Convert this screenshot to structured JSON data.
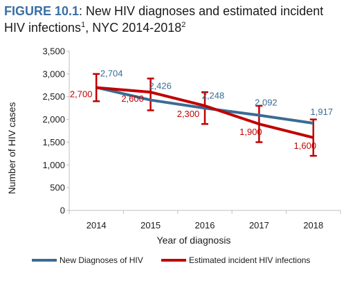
{
  "title": {
    "label": "FIGURE 10.1",
    "text": ": New HIV diagnoses and estimated incident HIV infections",
    "sup1": "1",
    "text2": ", NYC 2014-2018",
    "sup2": "2"
  },
  "colors": {
    "series_diagnoses": "#3a6b94",
    "series_incident": "#c00000",
    "label_diagnoses": "#3a6b94",
    "label_incident": "#c00000",
    "title_label": "#3a6ea5"
  },
  "chart_data": {
    "type": "line",
    "xlabel": "Year of diagnosis",
    "ylabel": "Number of HIV cases",
    "categories": [
      "2014",
      "2015",
      "2016",
      "2017",
      "2018"
    ],
    "ylim": [
      0,
      3500
    ],
    "yticks": [
      0,
      500,
      1000,
      1500,
      2000,
      2500,
      3000,
      3500
    ],
    "ytick_labels": [
      "0",
      "500",
      "1,000",
      "1,500",
      "2,000",
      "2,500",
      "3,000",
      "3,500"
    ],
    "grid": false,
    "legend_position": "bottom",
    "series": [
      {
        "name": "New Diagnoses of HIV",
        "values": [
          2704,
          2426,
          2248,
          2092,
          1917
        ],
        "labels": [
          "2,704",
          "2,426",
          "2,248",
          "2,092",
          "1,917"
        ]
      },
      {
        "name": "Estimated incident HIV infections",
        "values": [
          2700,
          2600,
          2300,
          1900,
          1600
        ],
        "labels": [
          "2,700",
          "2,600",
          "2,300",
          "1,900",
          "1,600"
        ],
        "error_low": [
          2400,
          2200,
          1900,
          1500,
          1200
        ],
        "error_high": [
          3000,
          2900,
          2600,
          2300,
          2000
        ]
      }
    ]
  }
}
